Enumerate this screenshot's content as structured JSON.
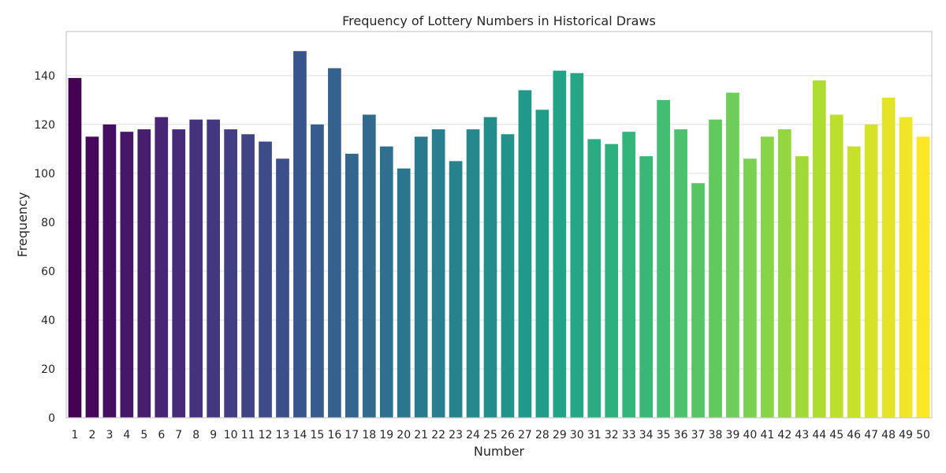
{
  "chart_data": {
    "type": "bar",
    "title": "Frequency of Lottery Numbers in Historical Draws",
    "xlabel": "Number",
    "ylabel": "Frequency",
    "ylim": [
      0,
      158
    ],
    "yticks": [
      0,
      20,
      40,
      60,
      80,
      100,
      120,
      140
    ],
    "grid": "horizontal",
    "colormap": "viridis",
    "categories": [
      "1",
      "2",
      "3",
      "4",
      "5",
      "6",
      "7",
      "8",
      "9",
      "10",
      "11",
      "12",
      "13",
      "14",
      "15",
      "16",
      "17",
      "18",
      "19",
      "20",
      "21",
      "22",
      "23",
      "24",
      "25",
      "26",
      "27",
      "28",
      "29",
      "30",
      "31",
      "32",
      "33",
      "34",
      "35",
      "36",
      "37",
      "38",
      "39",
      "40",
      "41",
      "42",
      "43",
      "44",
      "45",
      "46",
      "47",
      "48",
      "49",
      "50"
    ],
    "values": [
      139,
      115,
      120,
      117,
      118,
      123,
      118,
      122,
      122,
      118,
      116,
      113,
      106,
      150,
      120,
      143,
      108,
      124,
      111,
      102,
      115,
      118,
      105,
      118,
      123,
      116,
      134,
      126,
      142,
      141,
      114,
      112,
      117,
      107,
      130,
      118,
      96,
      122,
      133,
      106,
      115,
      118,
      107,
      138,
      124,
      111,
      120,
      131,
      123,
      115
    ]
  }
}
